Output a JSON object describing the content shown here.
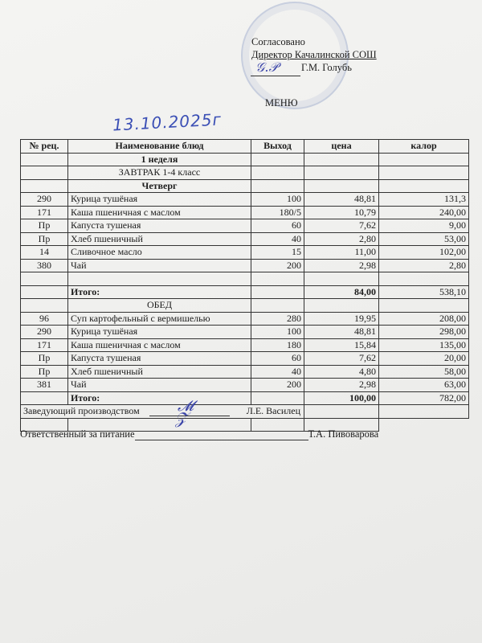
{
  "approval": {
    "line1": "Согласовано",
    "line2": "Директор  Качалинской СОШ",
    "line3": "Г.М. Голубь"
  },
  "title": "МЕНЮ",
  "date_handwritten": "13.10.2025г",
  "table": {
    "headers": [
      "№ рец.",
      "Наименование блюд",
      "Выход",
      "цена",
      "калор"
    ],
    "week": "1 неделя",
    "breakfast_label": "ЗАВТРАК 1-4 класс",
    "day": "Четверг",
    "breakfast": [
      [
        "290",
        "Курица тушёная",
        "100",
        "48,81",
        "131,3"
      ],
      [
        "171",
        "Каша пшеничная с маслом",
        "180/5",
        "10,79",
        "240,00"
      ],
      [
        "Пр",
        "Капуста тушеная",
        "60",
        "7,62",
        "9,00"
      ],
      [
        "Пр",
        "Хлеб пшеничный",
        "40",
        "2,80",
        "53,00"
      ],
      [
        "14",
        "Сливочное масло",
        "15",
        "11,00",
        "102,00"
      ],
      [
        "380",
        "Чай",
        "200",
        "2,98",
        "2,80"
      ]
    ],
    "breakfast_total": {
      "label": "Итого:",
      "price": "84,00",
      "kcal": "538,10"
    },
    "lunch_label": "ОБЕД",
    "lunch": [
      [
        "96",
        "Суп картофельный с вермишелью",
        "280",
        "19,95",
        "208,00"
      ],
      [
        "290",
        "Курица тушёная",
        "100",
        "48,81",
        "298,00"
      ],
      [
        "171",
        "Каша пшеничная с маслом",
        "180",
        "15,84",
        "135,00"
      ],
      [
        "Пр",
        "Капуста тушеная",
        "60",
        "7,62",
        "20,00"
      ],
      [
        "Пр",
        "Хлеб пшеничный",
        "40",
        "4,80",
        "58,00"
      ],
      [
        "381",
        "Чай",
        "200",
        "2,98",
        "63,00"
      ]
    ],
    "lunch_total": {
      "label": "Итого:",
      "price": "100,00",
      "kcal": "782,00"
    },
    "production_head": {
      "role": "Заведующий производством",
      "name": "Л.Е. Василец"
    }
  },
  "footer": {
    "role": "Ответственный за питание",
    "name": "Т.А. Пивоварова"
  }
}
